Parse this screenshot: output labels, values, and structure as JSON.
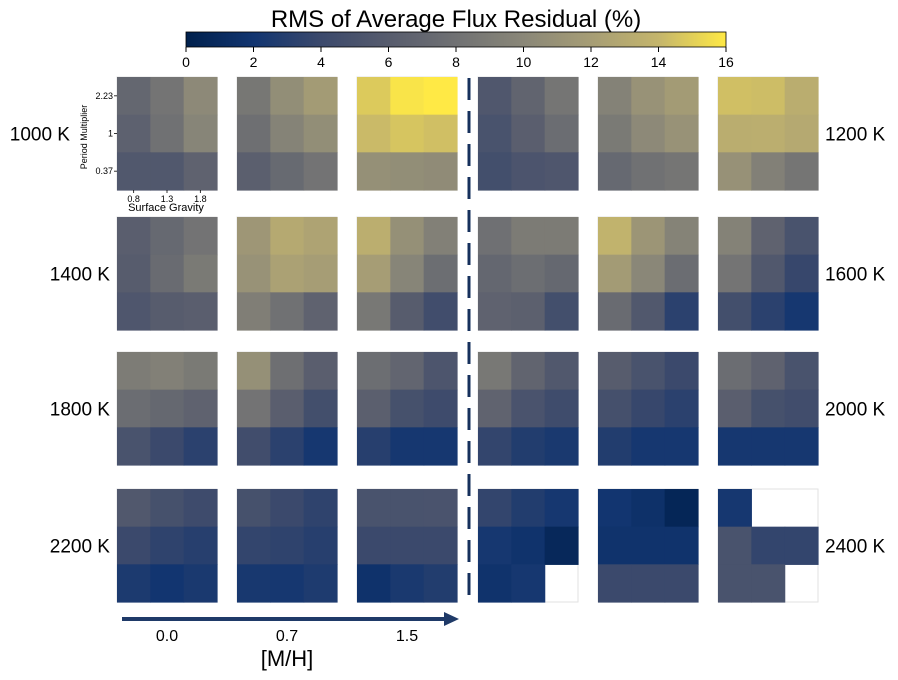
{
  "chart_data": {
    "type": "heatmap",
    "title": "RMS of Average Flux Residual (%)",
    "colormap": "cividis",
    "colorbar": {
      "label": "RMS of Average Flux Residual (%)",
      "range": [
        0,
        16
      ],
      "ticks": [
        "0",
        "2",
        "4",
        "6",
        "8",
        "10",
        "12",
        "14",
        "16"
      ]
    },
    "subplot_axes": {
      "ylabel": "Period Multiplier",
      "xlabel": "Surface Gravity",
      "ytick_labels": [
        "2.23",
        "1",
        "0.37"
      ],
      "xtick_labels": [
        "0.8",
        "1.3",
        "1.8"
      ]
    },
    "xlabel": "[M/H]",
    "metallicity_labels": [
      "0.0",
      "0.7",
      "1.5"
    ],
    "rows": [
      {
        "label_left": "1000 K",
        "label_right": "1200 K",
        "panels": [
          [
            [
              7.0,
              8.3,
              10.2
            ],
            [
              6.5,
              8.0,
              9.8
            ],
            [
              5.6,
              5.6,
              6.6
            ]
          ],
          [
            [
              8.5,
              10.6,
              11.8
            ],
            [
              7.8,
              9.6,
              10.6
            ],
            [
              6.3,
              7.3,
              8.2
            ]
          ],
          [
            [
              14.8,
              15.8,
              16.0
            ],
            [
              14.2,
              14.6,
              14.4
            ],
            [
              10.8,
              10.6,
              10.4
            ]
          ],
          [
            [
              5.5,
              6.8,
              8.4
            ],
            [
              5.0,
              6.2,
              7.6
            ],
            [
              4.6,
              5.2,
              5.4
            ]
          ],
          [
            [
              9.5,
              11.0,
              11.8
            ],
            [
              8.8,
              10.2,
              11.0
            ],
            [
              7.2,
              8.0,
              8.4
            ]
          ],
          [
            [
              14.4,
              14.3,
              13.3
            ],
            [
              13.3,
              13.4,
              13.0
            ],
            [
              10.9,
              9.4,
              8.4
            ]
          ]
        ]
      },
      {
        "label_left": "1400 K",
        "label_right": "1600 K",
        "panels": [
          [
            [
              6.2,
              7.2,
              8.2
            ],
            [
              6.0,
              7.4,
              8.8
            ],
            [
              5.4,
              6.0,
              6.2
            ]
          ],
          [
            [
              11.4,
              13.0,
              12.5
            ],
            [
              11.0,
              12.3,
              12.0
            ],
            [
              9.2,
              8.0,
              6.6
            ]
          ],
          [
            [
              13.4,
              10.8,
              9.4
            ],
            [
              12.0,
              9.8,
              7.7
            ],
            [
              8.6,
              6.0,
              4.4
            ]
          ],
          [
            [
              7.9,
              8.9,
              8.9
            ],
            [
              7.0,
              7.7,
              7.1
            ],
            [
              6.6,
              6.4,
              4.6
            ]
          ],
          [
            [
              13.8,
              11.3,
              9.6
            ],
            [
              11.8,
              10.0,
              7.6
            ],
            [
              7.4,
              5.6,
              3.2
            ]
          ],
          [
            [
              9.5,
              6.6,
              5.0
            ],
            [
              8.3,
              5.6,
              3.8
            ],
            [
              4.6,
              3.2,
              2.2
            ]
          ]
        ]
      },
      {
        "label_left": "1800 K",
        "label_right": "2000 K",
        "panels": [
          [
            [
              9.0,
              9.4,
              8.8
            ],
            [
              7.6,
              7.1,
              6.6
            ],
            [
              5.0,
              4.0,
              3.2
            ]
          ],
          [
            [
              10.8,
              7.8,
              6.2
            ],
            [
              8.2,
              6.2,
              4.6
            ],
            [
              4.4,
              3.2,
              2.2
            ]
          ],
          [
            [
              7.7,
              6.9,
              5.3
            ],
            [
              6.3,
              4.8,
              4.2
            ],
            [
              3.0,
              2.2,
              2.2
            ]
          ],
          [
            [
              8.6,
              6.8,
              5.6
            ],
            [
              6.7,
              5.1,
              4.3
            ],
            [
              3.6,
              2.8,
              2.4
            ]
          ],
          [
            [
              6.0,
              5.0,
              4.0
            ],
            [
              4.7,
              3.8,
              3.2
            ],
            [
              2.8,
              2.2,
              2.2
            ]
          ],
          [
            [
              7.6,
              6.6,
              5.0
            ],
            [
              6.2,
              4.8,
              4.4
            ],
            [
              2.2,
              2.2,
              2.2
            ]
          ]
        ]
      },
      {
        "label_left": "2200 K",
        "label_right": "2400 K",
        "panels": [
          [
            [
              5.6,
              4.8,
              4.2
            ],
            [
              4.0,
              3.4,
              3.0
            ],
            [
              2.5,
              2.0,
              2.4
            ]
          ],
          [
            [
              4.8,
              4.0,
              3.4
            ],
            [
              3.6,
              3.4,
              3.0
            ],
            [
              2.3,
              2.2,
              2.6
            ]
          ],
          [
            [
              5.0,
              5.0,
              5.1
            ],
            [
              4.0,
              4.0,
              4.0
            ],
            [
              1.7,
              2.4,
              2.8
            ]
          ],
          [
            [
              3.6,
              2.8,
              2.2
            ],
            [
              2.2,
              1.8,
              0.8
            ],
            [
              1.8,
              2.2,
              null
            ]
          ],
          [
            [
              2.0,
              1.6,
              0.6
            ],
            [
              1.8,
              1.8,
              1.8
            ],
            [
              4.0,
              4.0,
              4.0
            ]
          ],
          [
            [
              2.2,
              null,
              null
            ],
            [
              5.0,
              3.6,
              3.6
            ],
            [
              5.0,
              5.0,
              null
            ]
          ]
        ]
      }
    ]
  }
}
